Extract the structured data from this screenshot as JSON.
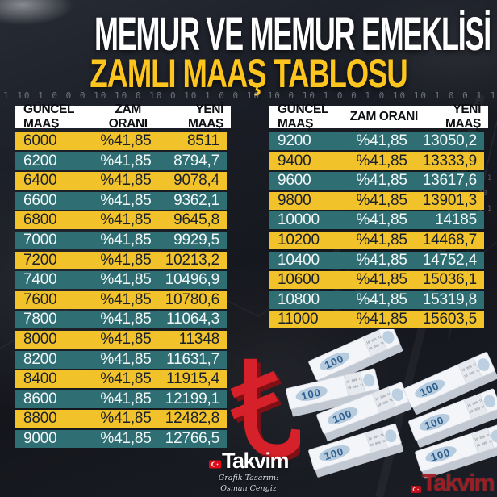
{
  "title": {
    "line1": "MEMUR VE MEMUR EMEKLİSİ",
    "line2": "ZAMLI MAAŞ TABLOSU"
  },
  "chart_data": {
    "type": "table",
    "title": "MEMUR VE MEMUR EMEKLİSİ ZAMLI MAAŞ TABLOSU",
    "columns": [
      "GÜNCEL MAAŞ",
      "ZAM ORANI",
      "YENİ MAAŞ"
    ],
    "tables": [
      {
        "name": "left",
        "rows": [
          [
            "6000",
            "%41,85",
            "8511"
          ],
          [
            "6200",
            "%41,85",
            "8794,7"
          ],
          [
            "6400",
            "%41,85",
            "9078,4"
          ],
          [
            "6600",
            "%41,85",
            "9362,1"
          ],
          [
            "6800",
            "%41,85",
            "9645,8"
          ],
          [
            "7000",
            "%41,85",
            "9929,5"
          ],
          [
            "7200",
            "%41,85",
            "10213,2"
          ],
          [
            "7400",
            "%41,85",
            "10496,9"
          ],
          [
            "7600",
            "%41,85",
            "10780,6"
          ],
          [
            "7800",
            "%41,85",
            "11064,3"
          ],
          [
            "8000",
            "%41,85",
            "11348"
          ],
          [
            "8200",
            "%41,85",
            "11631,7"
          ],
          [
            "8400",
            "%41,85",
            "11915,4"
          ],
          [
            "8600",
            "%41,85",
            "12199,1"
          ],
          [
            "8800",
            "%41,85",
            "12482,8"
          ],
          [
            "9000",
            "%41,85",
            "12766,5"
          ]
        ]
      },
      {
        "name": "right",
        "rows": [
          [
            "9200",
            "%41,85",
            "13050,2"
          ],
          [
            "9400",
            "%41,85",
            "13333,9"
          ],
          [
            "9600",
            "%41,85",
            "13617,6"
          ],
          [
            "9800",
            "%41,85",
            "13901,3"
          ],
          [
            "10000",
            "%41,85",
            "14185"
          ],
          [
            "10200",
            "%41,85",
            "14468,7"
          ],
          [
            "10400",
            "%41,85",
            "14752,4"
          ],
          [
            "10600",
            "%41,85",
            "15036,1"
          ],
          [
            "10800",
            "%41,85",
            "15319,8"
          ],
          [
            "11000",
            "%41,85",
            "15603,5"
          ]
        ]
      }
    ]
  },
  "branding": {
    "logo_text": "Takvim",
    "credit_line1": "Grafik Tasarım:",
    "credit_line2": "Osman Cengiz",
    "watermark_text": "Takvim"
  },
  "money": {
    "note_value": "100",
    "band_text": "10 000 TL"
  },
  "background": {
    "digits_row": "1 10 1 0 0 0 10 10 0 10 0 10 1 0 0 10 10 0 10 1 0 0 1 0 10 10 1 0 0 1 10 10 0 1 0",
    "digits_side": "0 1 10 0 1 0"
  },
  "icons": {
    "turkish_lira_icon": "₺",
    "turkish_flag_icon": "red flag with white crescent and star"
  },
  "colors": {
    "background": "#181b22",
    "title_white": "#ffffff",
    "title_gold": "#fdc51d",
    "row_yellow": "#f2c22b",
    "row_teal": "#2f6e73",
    "row_text_dark": "#18202b",
    "row_text_light": "#f2f7f7",
    "header_bg": "#ffffff",
    "header_text": "#0d0f13",
    "lira_red": "#d6202a",
    "lira_red_dark": "#7e1016",
    "watermark_red": "#a31d23"
  }
}
